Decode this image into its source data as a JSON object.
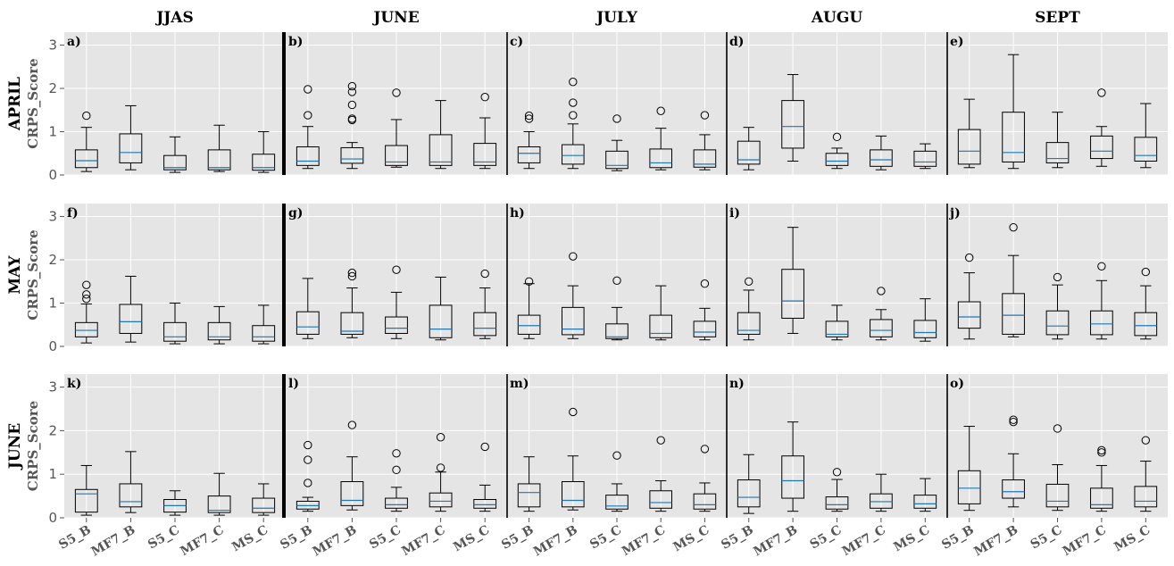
{
  "chart_data": {
    "type": "box",
    "column_titles": [
      "JJAS",
      "JUNE",
      "JULY",
      "AUGU",
      "SEPT"
    ],
    "row_titles": [
      "APRIL",
      "MAY",
      "JUNE"
    ],
    "ylabel": "CRPS_Score",
    "categories": [
      "S5_B",
      "MF7_B",
      "S5_C",
      "MF7_C",
      "MS_C"
    ],
    "ylim": [
      0,
      3.3
    ],
    "yticks": [
      0,
      1,
      2,
      3
    ],
    "grid": true,
    "colors": {
      "panel_bg": "#e5e5e5",
      "grid": "#ffffff",
      "box": "#000000",
      "median": "#1f77b4"
    },
    "panels": [
      {
        "label": "a)",
        "row": 0,
        "col": 0,
        "boxes": [
          {
            "whislo": 0.08,
            "q1": 0.17,
            "med": 0.33,
            "q3": 0.58,
            "whishi": 1.1,
            "fliers": [
              1.37
            ]
          },
          {
            "whislo": 0.12,
            "q1": 0.28,
            "med": 0.52,
            "q3": 0.95,
            "whishi": 1.6,
            "fliers": []
          },
          {
            "whislo": 0.06,
            "q1": 0.12,
            "med": 0.17,
            "q3": 0.45,
            "whishi": 0.88,
            "fliers": []
          },
          {
            "whislo": 0.08,
            "q1": 0.12,
            "med": 0.17,
            "q3": 0.58,
            "whishi": 1.15,
            "fliers": []
          },
          {
            "whislo": 0.06,
            "q1": 0.11,
            "med": 0.17,
            "q3": 0.48,
            "whishi": 1.0,
            "fliers": []
          }
        ]
      },
      {
        "label": "b)",
        "row": 0,
        "col": 1,
        "boxes": [
          {
            "whislo": 0.15,
            "q1": 0.22,
            "med": 0.32,
            "q3": 0.65,
            "whishi": 1.12,
            "fliers": [
              1.38,
              1.98
            ]
          },
          {
            "whislo": 0.15,
            "q1": 0.27,
            "med": 0.37,
            "q3": 0.63,
            "whishi": 0.75,
            "fliers": [
              1.27,
              1.3,
              1.62,
              1.92,
              2.05
            ]
          },
          {
            "whislo": 0.18,
            "q1": 0.22,
            "med": 0.3,
            "q3": 0.68,
            "whishi": 1.28,
            "fliers": [
              1.9
            ]
          },
          {
            "whislo": 0.15,
            "q1": 0.22,
            "med": 0.3,
            "q3": 0.93,
            "whishi": 1.72,
            "fliers": []
          },
          {
            "whislo": 0.15,
            "q1": 0.22,
            "med": 0.3,
            "q3": 0.73,
            "whishi": 1.32,
            "fliers": [
              1.8
            ]
          }
        ]
      },
      {
        "label": "c)",
        "row": 0,
        "col": 2,
        "boxes": [
          {
            "whislo": 0.15,
            "q1": 0.28,
            "med": 0.5,
            "q3": 0.65,
            "whishi": 1.0,
            "fliers": [
              1.3,
              1.37
            ]
          },
          {
            "whislo": 0.15,
            "q1": 0.25,
            "med": 0.45,
            "q3": 0.7,
            "whishi": 1.18,
            "fliers": [
              1.38,
              1.67,
              2.15
            ]
          },
          {
            "whislo": 0.1,
            "q1": 0.15,
            "med": 0.22,
            "q3": 0.55,
            "whishi": 0.8,
            "fliers": [
              1.3
            ]
          },
          {
            "whislo": 0.12,
            "q1": 0.17,
            "med": 0.28,
            "q3": 0.6,
            "whishi": 1.08,
            "fliers": [
              1.48
            ]
          },
          {
            "whislo": 0.12,
            "q1": 0.18,
            "med": 0.25,
            "q3": 0.58,
            "whishi": 0.93,
            "fliers": [
              1.38
            ]
          }
        ]
      },
      {
        "label": "d)",
        "row": 0,
        "col": 3,
        "boxes": [
          {
            "whislo": 0.12,
            "q1": 0.25,
            "med": 0.35,
            "q3": 0.78,
            "whishi": 1.1,
            "fliers": []
          },
          {
            "whislo": 0.32,
            "q1": 0.62,
            "med": 1.12,
            "q3": 1.72,
            "whishi": 2.32,
            "fliers": []
          },
          {
            "whislo": 0.15,
            "q1": 0.22,
            "med": 0.32,
            "q3": 0.5,
            "whishi": 0.62,
            "fliers": [
              0.88
            ]
          },
          {
            "whislo": 0.12,
            "q1": 0.2,
            "med": 0.35,
            "q3": 0.58,
            "whishi": 0.9,
            "fliers": []
          },
          {
            "whislo": 0.15,
            "q1": 0.2,
            "med": 0.3,
            "q3": 0.55,
            "whishi": 0.72,
            "fliers": []
          }
        ]
      },
      {
        "label": "e)",
        "row": 0,
        "col": 4,
        "boxes": [
          {
            "whislo": 0.17,
            "q1": 0.25,
            "med": 0.55,
            "q3": 1.05,
            "whishi": 1.75,
            "fliers": []
          },
          {
            "whislo": 0.15,
            "q1": 0.3,
            "med": 0.52,
            "q3": 1.45,
            "whishi": 2.78,
            "fliers": []
          },
          {
            "whislo": 0.17,
            "q1": 0.28,
            "med": 0.38,
            "q3": 0.75,
            "whishi": 1.45,
            "fliers": []
          },
          {
            "whislo": 0.2,
            "q1": 0.38,
            "med": 0.55,
            "q3": 0.9,
            "whishi": 1.12,
            "fliers": [
              1.9
            ]
          },
          {
            "whislo": 0.17,
            "q1": 0.32,
            "med": 0.45,
            "q3": 0.87,
            "whishi": 1.65,
            "fliers": []
          }
        ]
      },
      {
        "label": "f)",
        "row": 1,
        "col": 0,
        "boxes": [
          {
            "whislo": 0.08,
            "q1": 0.22,
            "med": 0.37,
            "q3": 0.55,
            "whishi": 0.98,
            "fliers": [
              1.1,
              1.2,
              1.42
            ]
          },
          {
            "whislo": 0.1,
            "q1": 0.3,
            "med": 0.57,
            "q3": 0.97,
            "whishi": 1.62,
            "fliers": []
          },
          {
            "whislo": 0.06,
            "q1": 0.12,
            "med": 0.22,
            "q3": 0.55,
            "whishi": 1.0,
            "fliers": []
          },
          {
            "whislo": 0.06,
            "q1": 0.15,
            "med": 0.22,
            "q3": 0.55,
            "whishi": 0.92,
            "fliers": []
          },
          {
            "whislo": 0.06,
            "q1": 0.12,
            "med": 0.22,
            "q3": 0.48,
            "whishi": 0.95,
            "fliers": []
          }
        ]
      },
      {
        "label": "g)",
        "row": 1,
        "col": 1,
        "boxes": [
          {
            "whislo": 0.18,
            "q1": 0.28,
            "med": 0.45,
            "q3": 0.8,
            "whishi": 1.57,
            "fliers": []
          },
          {
            "whislo": 0.2,
            "q1": 0.28,
            "med": 0.35,
            "q3": 0.78,
            "whishi": 1.35,
            "fliers": [
              1.62,
              1.7
            ]
          },
          {
            "whislo": 0.18,
            "q1": 0.3,
            "med": 0.42,
            "q3": 0.68,
            "whishi": 1.25,
            "fliers": [
              1.77
            ]
          },
          {
            "whislo": 0.15,
            "q1": 0.2,
            "med": 0.4,
            "q3": 0.95,
            "whishi": 1.6,
            "fliers": []
          },
          {
            "whislo": 0.18,
            "q1": 0.25,
            "med": 0.42,
            "q3": 0.78,
            "whishi": 1.35,
            "fliers": [
              1.68
            ]
          }
        ]
      },
      {
        "label": "h)",
        "row": 1,
        "col": 2,
        "boxes": [
          {
            "whislo": 0.18,
            "q1": 0.28,
            "med": 0.48,
            "q3": 0.72,
            "whishi": 1.45,
            "fliers": [
              1.5
            ]
          },
          {
            "whislo": 0.18,
            "q1": 0.27,
            "med": 0.4,
            "q3": 0.9,
            "whishi": 1.4,
            "fliers": [
              2.08
            ]
          },
          {
            "whislo": 0.15,
            "q1": 0.18,
            "med": 0.22,
            "q3": 0.52,
            "whishi": 0.9,
            "fliers": [
              1.52
            ]
          },
          {
            "whislo": 0.15,
            "q1": 0.2,
            "med": 0.3,
            "q3": 0.72,
            "whishi": 1.4,
            "fliers": []
          },
          {
            "whislo": 0.15,
            "q1": 0.22,
            "med": 0.33,
            "q3": 0.58,
            "whishi": 0.88,
            "fliers": [
              1.45
            ]
          }
        ]
      },
      {
        "label": "i)",
        "row": 1,
        "col": 3,
        "boxes": [
          {
            "whislo": 0.15,
            "q1": 0.28,
            "med": 0.37,
            "q3": 0.78,
            "whishi": 1.3,
            "fliers": [
              1.5
            ]
          },
          {
            "whislo": 0.3,
            "q1": 0.65,
            "med": 1.05,
            "q3": 1.78,
            "whishi": 2.75,
            "fliers": []
          },
          {
            "whislo": 0.15,
            "q1": 0.22,
            "med": 0.28,
            "q3": 0.58,
            "whishi": 0.95,
            "fliers": []
          },
          {
            "whislo": 0.15,
            "q1": 0.22,
            "med": 0.37,
            "q3": 0.62,
            "whishi": 0.85,
            "fliers": [
              1.28
            ]
          },
          {
            "whislo": 0.12,
            "q1": 0.2,
            "med": 0.32,
            "q3": 0.6,
            "whishi": 1.1,
            "fliers": []
          }
        ]
      },
      {
        "label": "j)",
        "row": 1,
        "col": 4,
        "boxes": [
          {
            "whislo": 0.17,
            "q1": 0.42,
            "med": 0.68,
            "q3": 1.03,
            "whishi": 1.7,
            "fliers": [
              2.05
            ]
          },
          {
            "whislo": 0.22,
            "q1": 0.28,
            "med": 0.72,
            "q3": 1.22,
            "whishi": 2.1,
            "fliers": [
              2.75
            ]
          },
          {
            "whislo": 0.17,
            "q1": 0.27,
            "med": 0.47,
            "q3": 0.82,
            "whishi": 1.42,
            "fliers": [
              1.6
            ]
          },
          {
            "whislo": 0.17,
            "q1": 0.27,
            "med": 0.52,
            "q3": 0.82,
            "whishi": 1.52,
            "fliers": [
              1.85
            ]
          },
          {
            "whislo": 0.17,
            "q1": 0.25,
            "med": 0.48,
            "q3": 0.78,
            "whishi": 1.4,
            "fliers": [
              1.72
            ]
          }
        ]
      },
      {
        "label": "k)",
        "row": 2,
        "col": 0,
        "boxes": [
          {
            "whislo": 0.06,
            "q1": 0.13,
            "med": 0.55,
            "q3": 0.65,
            "whishi": 1.2,
            "fliers": []
          },
          {
            "whislo": 0.12,
            "q1": 0.25,
            "med": 0.37,
            "q3": 0.78,
            "whishi": 1.52,
            "fliers": []
          },
          {
            "whislo": 0.06,
            "q1": 0.13,
            "med": 0.28,
            "q3": 0.42,
            "whishi": 0.62,
            "fliers": []
          },
          {
            "whislo": 0.06,
            "q1": 0.12,
            "med": 0.17,
            "q3": 0.5,
            "whishi": 1.02,
            "fliers": []
          },
          {
            "whislo": 0.06,
            "q1": 0.12,
            "med": 0.22,
            "q3": 0.45,
            "whishi": 0.78,
            "fliers": []
          }
        ]
      },
      {
        "label": "l)",
        "row": 2,
        "col": 1,
        "boxes": [
          {
            "whislo": 0.15,
            "q1": 0.2,
            "med": 0.28,
            "q3": 0.38,
            "whishi": 0.47,
            "fliers": [
              0.8,
              1.33,
              1.67
            ]
          },
          {
            "whislo": 0.18,
            "q1": 0.28,
            "med": 0.4,
            "q3": 0.83,
            "whishi": 1.4,
            "fliers": [
              2.13
            ]
          },
          {
            "whislo": 0.15,
            "q1": 0.22,
            "med": 0.3,
            "q3": 0.45,
            "whishi": 0.7,
            "fliers": [
              1.1,
              1.48
            ]
          },
          {
            "whislo": 0.15,
            "q1": 0.25,
            "med": 0.38,
            "q3": 0.57,
            "whishi": 1.05,
            "fliers": [
              1.15,
              1.85
            ]
          },
          {
            "whislo": 0.15,
            "q1": 0.22,
            "med": 0.3,
            "q3": 0.42,
            "whishi": 0.75,
            "fliers": [
              1.63
            ]
          }
        ]
      },
      {
        "label": "m)",
        "row": 2,
        "col": 2,
        "boxes": [
          {
            "whislo": 0.15,
            "q1": 0.25,
            "med": 0.58,
            "q3": 0.78,
            "whishi": 1.4,
            "fliers": []
          },
          {
            "whislo": 0.18,
            "q1": 0.25,
            "med": 0.4,
            "q3": 0.83,
            "whishi": 1.42,
            "fliers": [
              2.43
            ]
          },
          {
            "whislo": 0.15,
            "q1": 0.2,
            "med": 0.27,
            "q3": 0.52,
            "whishi": 0.78,
            "fliers": [
              1.43
            ]
          },
          {
            "whislo": 0.15,
            "q1": 0.22,
            "med": 0.35,
            "q3": 0.62,
            "whishi": 0.85,
            "fliers": [
              1.78
            ]
          },
          {
            "whislo": 0.15,
            "q1": 0.2,
            "med": 0.3,
            "q3": 0.55,
            "whishi": 0.8,
            "fliers": [
              1.58
            ]
          }
        ]
      },
      {
        "label": "n)",
        "row": 2,
        "col": 3,
        "boxes": [
          {
            "whislo": 0.1,
            "q1": 0.25,
            "med": 0.47,
            "q3": 0.87,
            "whishi": 1.45,
            "fliers": []
          },
          {
            "whislo": 0.15,
            "q1": 0.45,
            "med": 0.85,
            "q3": 1.42,
            "whishi": 2.2,
            "fliers": []
          },
          {
            "whislo": 0.15,
            "q1": 0.2,
            "med": 0.3,
            "q3": 0.48,
            "whishi": 0.88,
            "fliers": [
              1.05
            ]
          },
          {
            "whislo": 0.15,
            "q1": 0.22,
            "med": 0.37,
            "q3": 0.55,
            "whishi": 1.0,
            "fliers": []
          },
          {
            "whislo": 0.15,
            "q1": 0.22,
            "med": 0.32,
            "q3": 0.52,
            "whishi": 0.9,
            "fliers": []
          }
        ]
      },
      {
        "label": "o)",
        "row": 2,
        "col": 4,
        "boxes": [
          {
            "whislo": 0.17,
            "q1": 0.32,
            "med": 0.68,
            "q3": 1.08,
            "whishi": 2.1,
            "fliers": []
          },
          {
            "whislo": 0.25,
            "q1": 0.45,
            "med": 0.6,
            "q3": 0.87,
            "whishi": 1.47,
            "fliers": [
              2.2,
              2.25
            ]
          },
          {
            "whislo": 0.17,
            "q1": 0.25,
            "med": 0.38,
            "q3": 0.77,
            "whishi": 1.22,
            "fliers": [
              2.05
            ]
          },
          {
            "whislo": 0.15,
            "q1": 0.22,
            "med": 0.3,
            "q3": 0.68,
            "whishi": 1.2,
            "fliers": [
              1.5,
              1.55
            ]
          },
          {
            "whislo": 0.15,
            "q1": 0.25,
            "med": 0.38,
            "q3": 0.72,
            "whishi": 1.3,
            "fliers": [
              1.78
            ]
          }
        ]
      }
    ]
  }
}
